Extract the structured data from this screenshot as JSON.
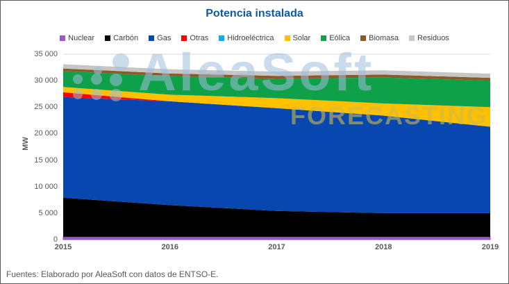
{
  "title": "Potencia instalada",
  "footer": "Fuentes: Elaborado por AleaSoft con datos de ENTSO-E.",
  "watermark": {
    "brand": "AleaSoft",
    "tagline": "FORECASTING"
  },
  "colors": {
    "title_blue": "#1057A8",
    "axis_text": "#595959",
    "gridline": "#D9D9D9",
    "watermark_blue": "#9FBEDD",
    "watermark_yellow": "#CDBA4E"
  },
  "chart_data": {
    "type": "area",
    "stacked": true,
    "title": "Potencia instalada",
    "xlabel": "",
    "ylabel": "MW",
    "ylim": [
      0,
      35000
    ],
    "ytick_step": 5000,
    "ytick_labels": [
      "0",
      "5 000",
      "10 000",
      "15 000",
      "20 000",
      "25 000",
      "30 000",
      "35 000"
    ],
    "grid": "horizontal",
    "legend_position": "top",
    "categories": [
      "2015",
      "2016",
      "2017",
      "2018",
      "2019"
    ],
    "series": [
      {
        "name": "Nuclear",
        "color": "#9C5BC4",
        "values": [
          500,
          500,
          500,
          500,
          500
        ]
      },
      {
        "name": "Carbón",
        "color": "#000000",
        "values": [
          7400,
          6000,
          4900,
          4500,
          4500
        ]
      },
      {
        "name": "Gas",
        "color": "#0847AF",
        "values": [
          19000,
          19600,
          19400,
          18400,
          16300
        ]
      },
      {
        "name": "Otras",
        "color": "#FF0000",
        "values": [
          900,
          0,
          0,
          0,
          0
        ]
      },
      {
        "name": "Hidroeléctrica",
        "color": "#00B0F0",
        "values": [
          0,
          0,
          0,
          0,
          0
        ]
      },
      {
        "name": "Solar",
        "color": "#FFC000",
        "values": [
          1000,
          1250,
          1900,
          2300,
          3700
        ]
      },
      {
        "name": "Eólica",
        "color": "#0FA149",
        "values": [
          3000,
          3500,
          3650,
          4900,
          5000
        ]
      },
      {
        "name": "Biomasa",
        "color": "#8C5A28",
        "values": [
          500,
          500,
          550,
          550,
          530
        ]
      },
      {
        "name": "Residuos",
        "color": "#C6C6C6",
        "values": [
          800,
          800,
          800,
          800,
          800
        ]
      }
    ]
  }
}
